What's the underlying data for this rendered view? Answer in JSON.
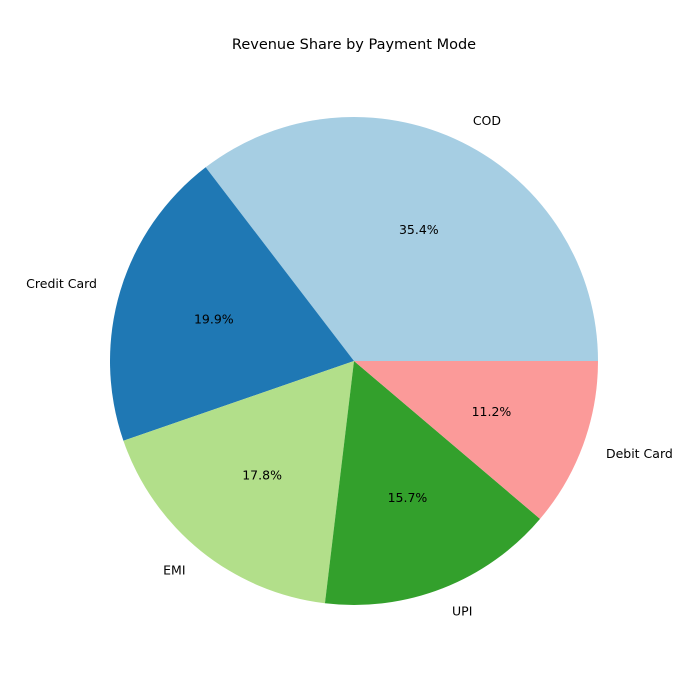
{
  "chart_data": {
    "type": "pie",
    "title": "Revenue Share by Payment Mode",
    "slices": [
      {
        "label": "COD",
        "value": 35.4,
        "pct_label": "35.4%",
        "color": "#a6cee3"
      },
      {
        "label": "Credit Card",
        "value": 19.9,
        "pct_label": "19.9%",
        "color": "#1f78b4"
      },
      {
        "label": "EMI",
        "value": 17.8,
        "pct_label": "17.8%",
        "color": "#b2df8a"
      },
      {
        "label": "UPI",
        "value": 15.7,
        "pct_label": "15.7%",
        "color": "#33a02c"
      },
      {
        "label": "Debit Card",
        "value": 11.2,
        "pct_label": "11.2%",
        "color": "#fb9a99"
      }
    ],
    "start_angle_deg": 0,
    "direction": "counterclockwise",
    "legend": "none"
  }
}
